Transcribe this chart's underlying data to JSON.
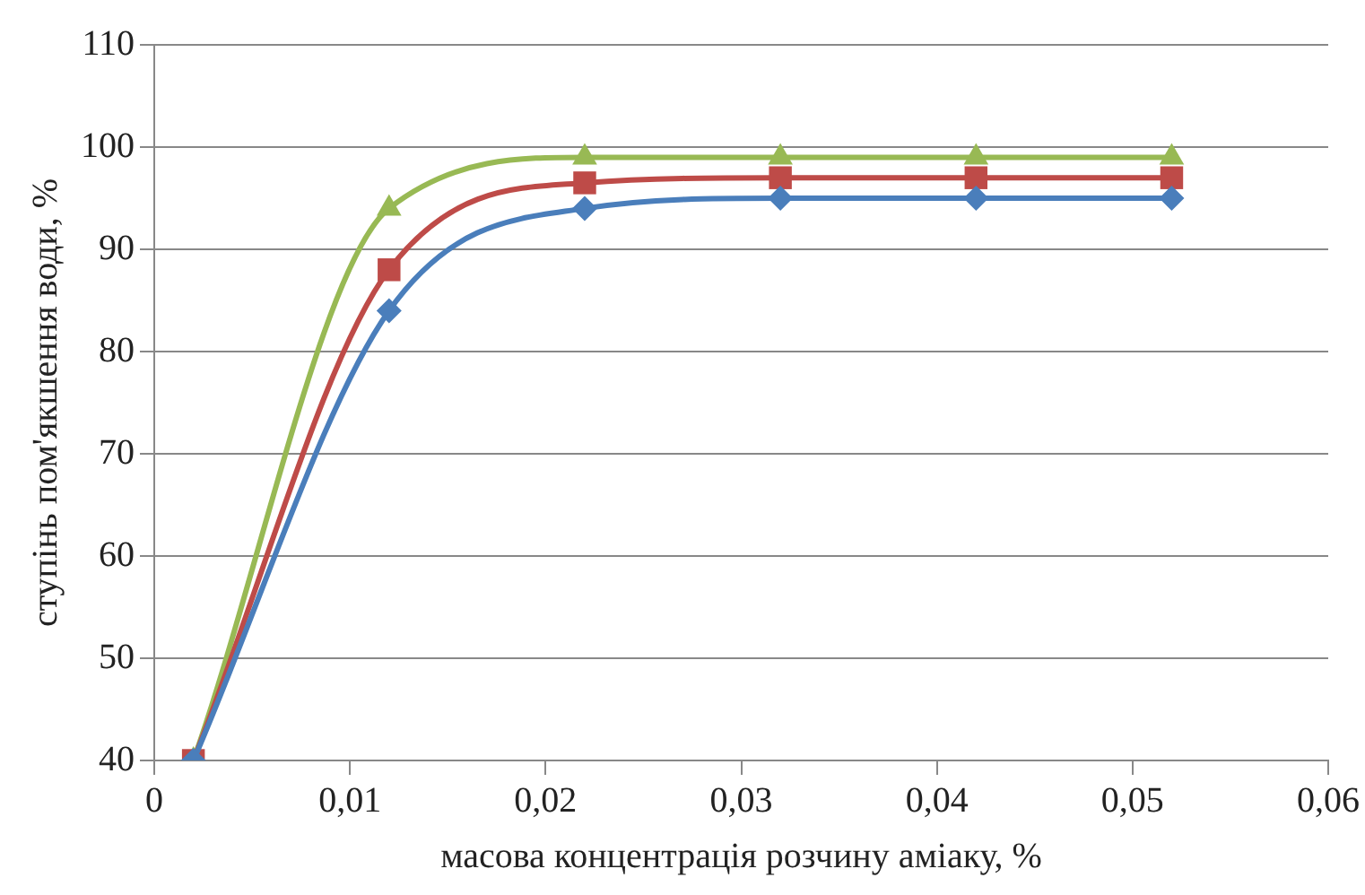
{
  "chart_data": {
    "type": "line",
    "xlabel": "масова концентрація розчину аміаку, %",
    "ylabel": "ступінь пом'якшення води, %",
    "x": [
      0.002,
      0.012,
      0.022,
      0.032,
      0.042,
      0.052
    ],
    "series": [
      {
        "color": "#4a7ebb",
        "marker": "diamond",
        "values": [
          40,
          84,
          94,
          95,
          95,
          95
        ]
      },
      {
        "color": "#be4b48",
        "marker": "square",
        "values": [
          40,
          88,
          96.5,
          97,
          97,
          97
        ]
      },
      {
        "color": "#98b954",
        "marker": "triangle",
        "values": [
          40,
          94,
          99,
          99,
          99,
          99
        ]
      }
    ],
    "xlim": [
      0,
      0.06
    ],
    "xticks": [
      0,
      {
        "value": 0.01,
        "label": "0,01"
      },
      {
        "value": 0.02,
        "label": "0,02"
      },
      {
        "value": 0.03,
        "label": "0,03"
      },
      {
        "value": 0.04,
        "label": "0,04"
      },
      {
        "value": 0.05,
        "label": "0,05"
      },
      {
        "value": 0.06,
        "label": "0,06"
      }
    ],
    "ylim": [
      40,
      110
    ],
    "yticks": [
      40,
      50,
      60,
      70,
      80,
      90,
      100,
      110
    ],
    "grid": "y",
    "legend": false,
    "line_style": "solid"
  }
}
